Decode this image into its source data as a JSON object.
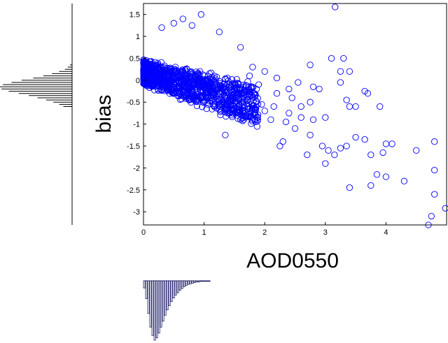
{
  "chart_data": [
    {
      "type": "scatter",
      "xlabel": "AOD0550",
      "ylabel": "bias",
      "xlim": [
        0,
        5
      ],
      "ylim": [
        -3.3,
        1.75
      ],
      "xticks": [
        "0",
        "1",
        "2",
        "3",
        "4"
      ],
      "yticks": [
        "1.5",
        "1",
        "0.5",
        "0",
        "-0.5",
        "-1",
        "-1.5",
        "-2",
        "-2.5",
        "-3"
      ],
      "marker": "open-circle",
      "marker_color": "#0000ff",
      "grid": false,
      "dense_cluster": {
        "description_points": "dense band of points with bias decreasing as AOD0550 increases",
        "x_range": [
          0,
          1.9
        ],
        "y_at_x0": [
          -0.1,
          0.5
        ],
        "slope_center": -0.4
      },
      "points": [
        {
          "x": 3.16,
          "y": 1.67
        },
        {
          "x": 0.95,
          "y": 1.5
        },
        {
          "x": 0.65,
          "y": 1.4
        },
        {
          "x": 0.3,
          "y": 1.2
        },
        {
          "x": 0.5,
          "y": 1.3
        },
        {
          "x": 1.25,
          "y": 1.1
        },
        {
          "x": 0.8,
          "y": 1.25
        },
        {
          "x": 1.6,
          "y": 0.75
        },
        {
          "x": 2.75,
          "y": 0.35
        },
        {
          "x": 3.1,
          "y": 0.5
        },
        {
          "x": 3.3,
          "y": 0.5
        },
        {
          "x": 3.4,
          "y": 0.2
        },
        {
          "x": 3.25,
          "y": -0.05
        },
        {
          "x": 3.7,
          "y": -0.3
        },
        {
          "x": 3.65,
          "y": -0.25
        },
        {
          "x": 3.35,
          "y": -0.45
        },
        {
          "x": 3.4,
          "y": -0.6
        },
        {
          "x": 3.0,
          "y": -0.85
        },
        {
          "x": 2.75,
          "y": -0.5
        },
        {
          "x": 2.9,
          "y": -0.2
        },
        {
          "x": 3.5,
          "y": -1.3
        },
        {
          "x": 3.35,
          "y": -1.5
        },
        {
          "x": 3.9,
          "y": -0.6
        },
        {
          "x": 4.0,
          "y": -1.45
        },
        {
          "x": 3.65,
          "y": -1.35
        },
        {
          "x": 3.75,
          "y": -1.7
        },
        {
          "x": 4.1,
          "y": -1.45
        },
        {
          "x": 3.95,
          "y": -1.65
        },
        {
          "x": 4.5,
          "y": -1.6
        },
        {
          "x": 4.8,
          "y": -1.4
        },
        {
          "x": 4.8,
          "y": -2.05
        },
        {
          "x": 3.85,
          "y": -2.15
        },
        {
          "x": 4.0,
          "y": -2.2
        },
        {
          "x": 4.3,
          "y": -2.3
        },
        {
          "x": 3.75,
          "y": -2.4
        },
        {
          "x": 3.4,
          "y": -2.45
        },
        {
          "x": 3.25,
          "y": -1.55
        },
        {
          "x": 3.15,
          "y": -1.7
        },
        {
          "x": 3.05,
          "y": -1.6
        },
        {
          "x": 2.95,
          "y": -1.5
        },
        {
          "x": 3.0,
          "y": -1.9
        },
        {
          "x": 2.7,
          "y": -1.7
        },
        {
          "x": 2.5,
          "y": -1.1
        },
        {
          "x": 2.6,
          "y": -0.85
        },
        {
          "x": 2.3,
          "y": -1.4
        },
        {
          "x": 2.25,
          "y": -1.5
        },
        {
          "x": 2.4,
          "y": -0.75
        },
        {
          "x": 2.1,
          "y": -0.9
        },
        {
          "x": 2.0,
          "y": -0.7
        },
        {
          "x": 2.2,
          "y": -0.3
        },
        {
          "x": 2.4,
          "y": -0.2
        },
        {
          "x": 2.45,
          "y": -0.4
        },
        {
          "x": 2.6,
          "y": -0.6
        },
        {
          "x": 2.8,
          "y": -0.9
        },
        {
          "x": 2.75,
          "y": -1.25
        },
        {
          "x": 2.2,
          "y": 0.05
        },
        {
          "x": 2.0,
          "y": 0.2
        },
        {
          "x": 1.9,
          "y": -0.1
        },
        {
          "x": 1.8,
          "y": 0.3
        },
        {
          "x": 1.75,
          "y": 0.1
        },
        {
          "x": 1.35,
          "y": -1.25
        },
        {
          "x": 1.6,
          "y": -0.9
        },
        {
          "x": 1.85,
          "y": -0.95
        },
        {
          "x": 1.95,
          "y": -0.55
        },
        {
          "x": 2.8,
          "y": -0.15
        },
        {
          "x": 2.55,
          "y": -0.05
        },
        {
          "x": 2.15,
          "y": -0.6
        },
        {
          "x": 2.35,
          "y": -0.95
        },
        {
          "x": 4.7,
          "y": -3.3
        },
        {
          "x": 4.75,
          "y": -3.1
        },
        {
          "x": 4.98,
          "y": -2.92
        },
        {
          "x": 4.8,
          "y": -2.6
        },
        {
          "x": 3.25,
          "y": 0.2
        },
        {
          "x": 3.5,
          "y": -0.6
        }
      ]
    },
    {
      "type": "bar",
      "role": "y-marginal-histogram",
      "orientation": "horizontal",
      "bin_range": [
        -3.3,
        1.75
      ],
      "bin_width": 0.05,
      "values": [
        {
          "bin": -0.6,
          "count": 12
        },
        {
          "bin": -0.55,
          "count": 18
        },
        {
          "bin": -0.5,
          "count": 26
        },
        {
          "bin": -0.45,
          "count": 36
        },
        {
          "bin": -0.4,
          "count": 48
        },
        {
          "bin": -0.35,
          "count": 60
        },
        {
          "bin": -0.3,
          "count": 74
        },
        {
          "bin": -0.25,
          "count": 88
        },
        {
          "bin": -0.2,
          "count": 98
        },
        {
          "bin": -0.15,
          "count": 100
        },
        {
          "bin": -0.1,
          "count": 96
        },
        {
          "bin": -0.05,
          "count": 84
        },
        {
          "bin": 0.0,
          "count": 70
        },
        {
          "bin": 0.05,
          "count": 54
        },
        {
          "bin": 0.1,
          "count": 40
        },
        {
          "bin": 0.15,
          "count": 28
        },
        {
          "bin": 0.2,
          "count": 18
        },
        {
          "bin": 0.25,
          "count": 10
        },
        {
          "bin": 0.3,
          "count": 6
        },
        {
          "bin": 0.35,
          "count": 3
        }
      ]
    },
    {
      "type": "bar",
      "role": "x-marginal-histogram",
      "orientation": "vertical",
      "bin_range": [
        0,
        5
      ],
      "bin_width": 0.04,
      "values": [
        12,
        30,
        55,
        78,
        92,
        100,
        96,
        88,
        78,
        68,
        58,
        49,
        42,
        35,
        29,
        24,
        20,
        16,
        13,
        10,
        8,
        6,
        5,
        4,
        3,
        2,
        2,
        1,
        1,
        1,
        1,
        1
      ]
    }
  ]
}
